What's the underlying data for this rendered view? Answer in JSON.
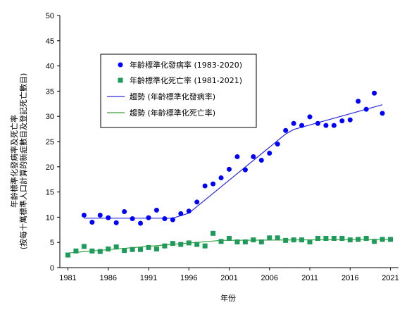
{
  "chart_data": {
    "type": "scatter",
    "xlabel": "年份",
    "ylabel_lines": [
      "年齡標準化發病率及死亡率",
      "(按每十萬標準人口計算的新症數目及登記死亡數目)"
    ],
    "xlim": [
      1980,
      2022
    ],
    "ylim": [
      0,
      50
    ],
    "x_ticks": [
      1981,
      1986,
      1991,
      1996,
      2001,
      2006,
      2011,
      2016,
      2021
    ],
    "y_ticks": [
      0,
      5,
      10,
      15,
      20,
      25,
      30,
      35,
      40,
      45,
      50
    ],
    "grid": false,
    "legend_position": "upper-left",
    "series": [
      {
        "name": "年齡標準化發病率 (1983-2020)",
        "kind": "scatter",
        "marker": "circle",
        "color": "#0000ff",
        "x": [
          1983,
          1984,
          1985,
          1986,
          1987,
          1988,
          1989,
          1990,
          1991,
          1992,
          1993,
          1994,
          1995,
          1996,
          1997,
          1998,
          1999,
          2000,
          2001,
          2002,
          2003,
          2004,
          2005,
          2006,
          2007,
          2008,
          2009,
          2010,
          2011,
          2012,
          2013,
          2014,
          2015,
          2016,
          2017,
          2018,
          2019,
          2020
        ],
        "y": [
          10.4,
          9.0,
          10.4,
          9.9,
          8.9,
          11.1,
          9.7,
          8.8,
          9.9,
          11.4,
          9.7,
          9.5,
          10.7,
          11.2,
          13.0,
          16.2,
          16.6,
          17.8,
          19.5,
          22.0,
          19.4,
          22.0,
          21.3,
          22.7,
          24.5,
          27.2,
          28.6,
          28.2,
          29.9,
          28.6,
          28.2,
          28.2,
          29.1,
          29.3,
          33.0,
          31.4,
          34.6,
          30.6
        ]
      },
      {
        "name": "年齡標準化死亡率 (1981-2021)",
        "kind": "scatter",
        "marker": "square",
        "color": "#1e9b5a",
        "x": [
          1981,
          1982,
          1983,
          1984,
          1985,
          1986,
          1987,
          1988,
          1989,
          1990,
          1991,
          1992,
          1993,
          1994,
          1995,
          1996,
          1997,
          1998,
          1999,
          2000,
          2001,
          2002,
          2003,
          2004,
          2005,
          2006,
          2007,
          2008,
          2009,
          2010,
          2011,
          2012,
          2013,
          2014,
          2015,
          2016,
          2017,
          2018,
          2019,
          2020,
          2021
        ],
        "y": [
          2.5,
          3.3,
          4.2,
          3.3,
          3.2,
          3.7,
          4.1,
          3.4,
          3.6,
          3.6,
          4.0,
          3.7,
          4.3,
          4.8,
          4.6,
          4.9,
          4.6,
          4.3,
          6.8,
          5.2,
          5.8,
          5.1,
          5.1,
          5.5,
          5.1,
          5.9,
          5.9,
          5.4,
          5.5,
          5.5,
          5.1,
          5.8,
          5.8,
          5.8,
          5.8,
          5.5,
          5.6,
          5.8,
          5.2,
          5.6,
          5.6
        ]
      },
      {
        "name": "趨勢 (年齡標準化發病率)",
        "kind": "line",
        "color": "#2a2ae0",
        "x": [
          1983,
          1994,
          1996,
          2008,
          2009,
          2020
        ],
        "y": [
          9.8,
          9.8,
          10.8,
          26.5,
          27.4,
          32.3
        ]
      },
      {
        "name": "趨勢 (年齡標準化死亡率)",
        "kind": "line",
        "color": "#3ca03c",
        "x": [
          1981,
          2000,
          2021
        ],
        "y": [
          2.9,
          5.4,
          5.6
        ]
      }
    ]
  }
}
